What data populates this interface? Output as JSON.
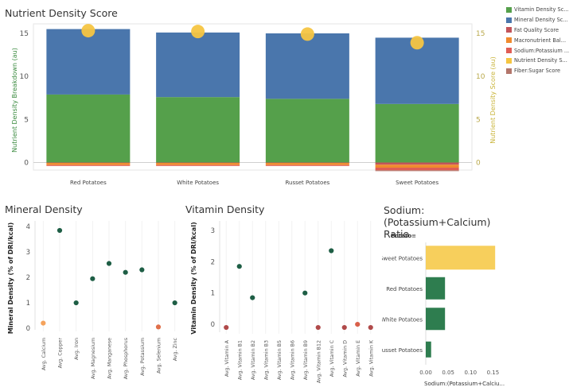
{
  "titles": {
    "main": "Nutrient Density Score",
    "mineral": "Mineral Density",
    "vitamin": "Vitamin Density",
    "sodium": "Sodium:(Potassium+Calcium) Ratio"
  },
  "legend": [
    {
      "label": "Vitamin Density Sc...",
      "color": "#55a04b"
    },
    {
      "label": "Mineral Density Sc...",
      "color": "#4a76ac"
    },
    {
      "label": "Fat Quality Score",
      "color": "#c2545a"
    },
    {
      "label": "Macronutrient Bal...",
      "color": "#f08a2e"
    },
    {
      "label": "Sodium:Potassium ...",
      "color": "#e05d55"
    },
    {
      "label": "Nutrient Density S...",
      "color": "#f5c542"
    },
    {
      "label": "Fiber:Sugar Score",
      "color": "#b3766b"
    }
  ],
  "chart_data": [
    {
      "type": "bar",
      "stacked": true,
      "categories": [
        "Red Potatoes",
        "White Potatoes",
        "Russet Potatoes",
        "Sweet Potatoes"
      ],
      "series": [
        {
          "name": "Vitamin Density Sc...",
          "values": [
            7.9,
            7.6,
            7.4,
            6.8
          ]
        },
        {
          "name": "Mineral Density Sc...",
          "values": [
            7.6,
            7.5,
            7.6,
            7.7
          ]
        },
        {
          "name": "Fat Quality Score",
          "values": [
            -0.05,
            -0.05,
            -0.05,
            -0.25
          ]
        },
        {
          "name": "Macronutrient Bal...",
          "values": [
            -0.25,
            -0.25,
            -0.25,
            -0.35
          ]
        },
        {
          "name": "Sodium:Potassium ...",
          "values": [
            -0.1,
            -0.1,
            -0.1,
            -0.3
          ]
        },
        {
          "name": "Fiber:Sugar Score",
          "values": [
            0,
            0,
            0,
            -0.1
          ]
        }
      ],
      "overlay": {
        "name": "Nutrient Density S...",
        "values": [
          15.5,
          15.4,
          15.1,
          14.1
        ]
      },
      "ylabel": "Nutrient Density Breakdown (au)",
      "y2label": "Nutrient Density Score (au)",
      "ylim": [
        -1,
        15.5
      ],
      "yticks": [
        0,
        5,
        10,
        15
      ]
    },
    {
      "type": "scatter",
      "categories": [
        "Avg. Calcium",
        "Avg. Copper",
        "Avg. Iron",
        "Avg. Magnesium",
        "Avg. Manganese",
        "Avg. Phosphorus",
        "Avg. Potassium",
        "Avg. Selenium",
        "Avg. Zinc"
      ],
      "values": [
        0.2,
        3.85,
        1.0,
        1.95,
        2.55,
        2.2,
        2.3,
        0.05,
        1.0
      ],
      "colors": [
        "#f5a35c",
        "#1e5e45",
        "#1e5e45",
        "#1e5e45",
        "#1e5e45",
        "#1e5e45",
        "#1e5e45",
        "#e0704a",
        "#1e5e45"
      ],
      "ylabel": "Mineral Density (% of DRI/kcal)",
      "ylim": [
        0,
        4.1
      ],
      "yticks": [
        0,
        1,
        2,
        3,
        4
      ]
    },
    {
      "type": "scatter",
      "categories": [
        "Avg. Vitamin A",
        "Avg. Vitamin B1",
        "Avg. Vitamin B2",
        "Avg. Vitamin B3",
        "Avg. Vitamin B5",
        "Avg. Vitamin B6",
        "Avg. Vitamin B9",
        "Avg. Vitamin B12",
        "Avg. Vitamin C",
        "Avg. Vitamin D",
        "Avg. Vitamin E",
        "Avg. Vitamin K"
      ],
      "values": [
        -0.1,
        1.85,
        0.85,
        null,
        null,
        null,
        1.0,
        -0.1,
        2.35,
        -0.1,
        0.0,
        -0.1
      ],
      "colors": [
        "#b04a4a",
        "#1e5e45",
        "#1e5e45",
        "#1e5e45",
        "#1e5e45",
        "#1e5e45",
        "#1e5e45",
        "#b04a4a",
        "#1e5e45",
        "#b04a4a",
        "#d9604a",
        "#b04a4a"
      ],
      "ylabel": "Vitamin Density (% of DRI/kcal)",
      "ylim": [
        -0.2,
        3.2
      ],
      "yticks": [
        0,
        1,
        2,
        3
      ]
    },
    {
      "type": "bar",
      "orientation": "horizontal",
      "header": "Potato",
      "categories": [
        "Sweet Potatoes",
        "Red Potatoes",
        "White Potatoes",
        "Russet Potatoes"
      ],
      "values": [
        0.155,
        0.043,
        0.043,
        0.012
      ],
      "colors": [
        "#f7cf5c",
        "#2e7d4f",
        "#2e7d4f",
        "#2e7d4f"
      ],
      "xlabel": "Sodium:(Potassium+Calciu...",
      "xticks": [
        "0.00",
        "0.05",
        "0.10",
        "0.15"
      ],
      "xlim": [
        0,
        0.16
      ]
    }
  ]
}
